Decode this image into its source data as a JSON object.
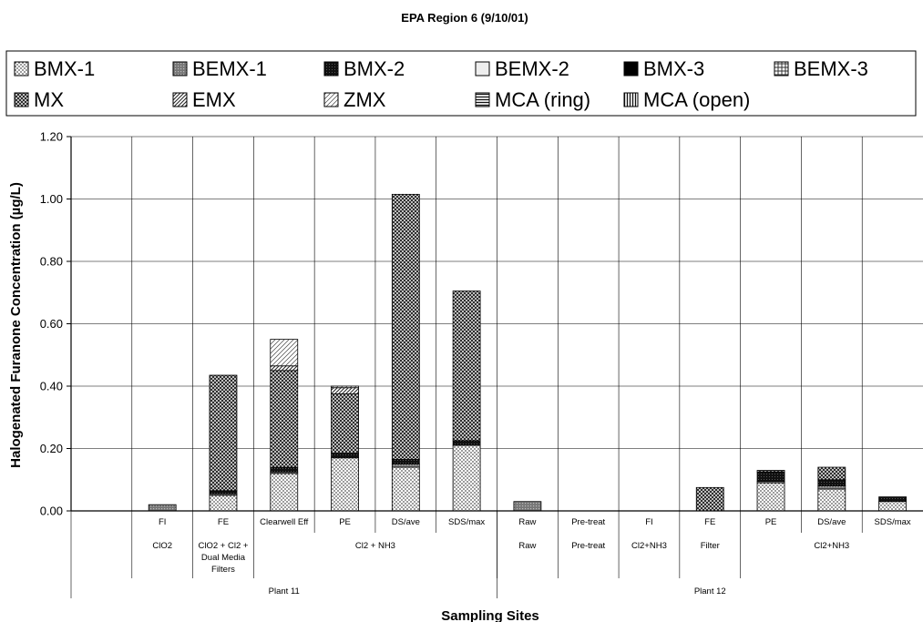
{
  "chart_data": {
    "type": "bar",
    "stacked": true,
    "title": "EPA Region 6 (9/10/01)",
    "xlabel": "Sampling Sites",
    "ylabel": "Halogenated Furanone Concentration (µg/L)",
    "ylim": [
      0,
      1.2
    ],
    "yticks": [
      "0.00",
      "0.20",
      "0.40",
      "0.60",
      "0.80",
      "1.00",
      "1.20"
    ],
    "grid": true,
    "legend_position": "top",
    "categories": [
      "",
      "FI",
      "FE",
      "Clearwell Eff",
      "PE",
      "DS/ave",
      "SDS/max",
      "Raw",
      "Pre-treat",
      "FI",
      "FE",
      "PE",
      "DS/ave",
      "SDS/max"
    ],
    "group_labels": [
      {
        "label": "ClO2",
        "span": [
          1,
          1
        ]
      },
      {
        "label": "ClO2 + Cl2 + Dual Media Filters",
        "lines": [
          "ClO2 + Cl2 +",
          "Dual Media",
          "Filters"
        ],
        "span": [
          2,
          2
        ]
      },
      {
        "label": "Cl2 + NH3",
        "span": [
          3,
          6
        ]
      },
      {
        "label": "Raw",
        "span": [
          7,
          7
        ]
      },
      {
        "label": "Pre-treat",
        "span": [
          8,
          8
        ]
      },
      {
        "label": "Cl2+NH3",
        "span": [
          9,
          9
        ]
      },
      {
        "label": "Filter",
        "span": [
          10,
          10
        ]
      },
      {
        "label": "Cl2+NH3",
        "span": [
          11,
          13
        ]
      }
    ],
    "plant_labels": [
      {
        "label": "Plant 11",
        "span": [
          0,
          6
        ]
      },
      {
        "label": "Plant 12",
        "span": [
          7,
          13
        ]
      }
    ],
    "series": [
      {
        "name": "BMX-1",
        "values": [
          0,
          0,
          0.05,
          0.12,
          0.17,
          0.14,
          0.21,
          0,
          0,
          0,
          0,
          0.09,
          0.07,
          0.03
        ]
      },
      {
        "name": "BEMX-1",
        "values": [
          0,
          0.02,
          0.005,
          0.005,
          0,
          0.01,
          0,
          0.03,
          0,
          0,
          0,
          0.005,
          0.01,
          0
        ]
      },
      {
        "name": "BMX-2",
        "values": [
          0,
          0,
          0.01,
          0.015,
          0.015,
          0.015,
          0.015,
          0,
          0,
          0,
          0,
          0.03,
          0.02,
          0.015
        ]
      },
      {
        "name": "BEMX-2",
        "values": [
          0,
          0,
          0,
          0,
          0,
          0,
          0,
          0,
          0,
          0,
          0,
          0,
          0,
          0
        ]
      },
      {
        "name": "BMX-3",
        "values": [
          0,
          0,
          0,
          0,
          0,
          0,
          0,
          0,
          0,
          0,
          0,
          0,
          0,
          0
        ]
      },
      {
        "name": "BEMX-3",
        "values": [
          0,
          0,
          0,
          0,
          0,
          0,
          0,
          0,
          0,
          0,
          0,
          0,
          0,
          0
        ]
      },
      {
        "name": "MX",
        "values": [
          0,
          0,
          0.37,
          0.31,
          0.19,
          0.85,
          0.48,
          0,
          0,
          0,
          0.075,
          0.005,
          0.04,
          0
        ]
      },
      {
        "name": "EMX",
        "values": [
          0,
          0,
          0,
          0.015,
          0.02,
          0,
          0,
          0,
          0,
          0,
          0,
          0,
          0,
          0
        ]
      },
      {
        "name": "ZMX",
        "values": [
          0,
          0,
          0,
          0.085,
          0.005,
          0,
          0,
          0,
          0,
          0,
          0,
          0,
          0,
          0
        ]
      },
      {
        "name": "MCA (ring)",
        "values": [
          0,
          0,
          0,
          0,
          0,
          0,
          0,
          0,
          0,
          0,
          0,
          0,
          0,
          0
        ]
      },
      {
        "name": "MCA (open)",
        "values": [
          0,
          0,
          0,
          0,
          0,
          0,
          0,
          0,
          0,
          0,
          0,
          0,
          0,
          0
        ]
      }
    ],
    "colors": {
      "BMX-1": "#c8c8c8",
      "BEMX-1": "#8c8c8c",
      "BMX-2": "#202020",
      "BEMX-2": "#e6e6e6",
      "BMX-3": "#000000",
      "BEMX-3": "#b4b4b4",
      "MX": "#4a4a4a",
      "EMX": "#9a9a9a",
      "ZMX": "#d8d8d8",
      "MCA (ring)": "#505050",
      "MCA (open)": "#6a6a6a"
    }
  }
}
